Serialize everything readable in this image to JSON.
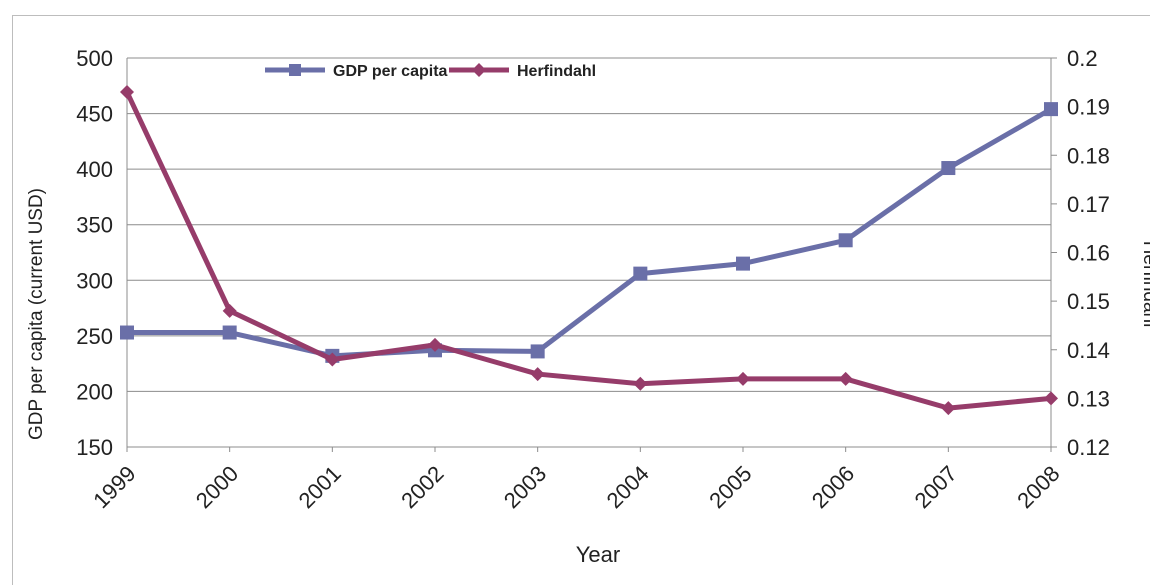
{
  "chart_data": {
    "type": "line",
    "categories": [
      "1999",
      "2000",
      "2001",
      "2002",
      "2003",
      "2004",
      "2005",
      "2006",
      "2007",
      "2008"
    ],
    "series": [
      {
        "name": "GDP per capita",
        "axis": "left",
        "color": "#6a6fa8",
        "marker": "square",
        "values": [
          253,
          253,
          232,
          237,
          236,
          306,
          315,
          336,
          401,
          454
        ]
      },
      {
        "name": "Herfindahl",
        "axis": "right",
        "color": "#963c6a",
        "marker": "diamond",
        "values": [
          0.193,
          0.148,
          0.138,
          0.141,
          0.135,
          0.133,
          0.134,
          0.134,
          0.128,
          0.13
        ]
      }
    ],
    "xlabel": "Year",
    "ylabel": "GDP per capita (current USD)",
    "y2label": "Herfindahl",
    "ylim": [
      150,
      500
    ],
    "y2lim": [
      0.12,
      0.2
    ],
    "yticks": [
      "150",
      "200",
      "250",
      "300",
      "350",
      "400",
      "450",
      "500"
    ],
    "y2ticks": [
      "0.12",
      "0.13",
      "0.14",
      "0.15",
      "0.16",
      "0.17",
      "0.18",
      "0.19",
      "0.2"
    ],
    "grid": true,
    "legend": "top"
  }
}
